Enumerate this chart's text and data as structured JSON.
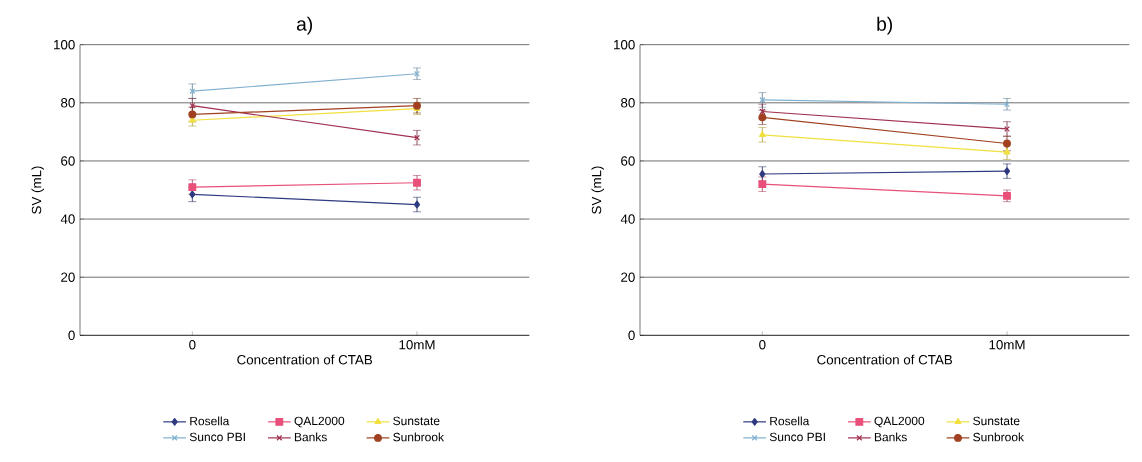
{
  "chart_data": [
    {
      "type": "line",
      "title": "a)",
      "xlabel": "Concentration of CTAB",
      "ylabel": "SV (mL)",
      "categories": [
        "0",
        "10mM"
      ],
      "ylim": [
        0,
        100
      ],
      "yticks": [
        0,
        20,
        40,
        60,
        80,
        100
      ],
      "grid": "y",
      "legend": "bottom",
      "series": [
        {
          "name": "Rosella",
          "color": "#2e3a80",
          "marker": "diamond",
          "values": [
            48.5,
            45
          ],
          "errors": [
            2.5,
            2.5
          ]
        },
        {
          "name": "QAL2000",
          "color": "#e8507a",
          "marker": "square",
          "values": [
            51,
            52.5
          ],
          "errors": [
            2.5,
            2.5
          ]
        },
        {
          "name": "Sunstate",
          "color": "#f0e040",
          "marker": "triangle",
          "values": [
            74,
            78
          ],
          "errors": [
            2,
            2
          ]
        },
        {
          "name": "Sunco PBI",
          "color": "#80b0d0",
          "marker": "cross",
          "values": [
            84,
            90
          ],
          "errors": [
            2.5,
            2
          ]
        },
        {
          "name": "Banks",
          "color": "#a03050",
          "marker": "cross",
          "values": [
            79,
            68
          ],
          "errors": [
            2.5,
            2.5
          ]
        },
        {
          "name": "Sunbrook",
          "color": "#a04020",
          "marker": "circle",
          "values": [
            76,
            79
          ],
          "errors": [
            2.5,
            2.5
          ]
        }
      ]
    },
    {
      "type": "line",
      "title": "b)",
      "xlabel": "Concentration of CTAB",
      "ylabel": "SV (mL)",
      "categories": [
        "0",
        "10mM"
      ],
      "ylim": [
        0,
        100
      ],
      "yticks": [
        0,
        20,
        40,
        60,
        80,
        100
      ],
      "grid": "y",
      "legend": "bottom",
      "series": [
        {
          "name": "Rosella",
          "color": "#2e3a80",
          "marker": "diamond",
          "values": [
            55.5,
            56.5
          ],
          "errors": [
            2.5,
            2.5
          ]
        },
        {
          "name": "QAL2000",
          "color": "#e8507a",
          "marker": "square",
          "values": [
            52,
            48
          ],
          "errors": [
            2.5,
            2
          ]
        },
        {
          "name": "Sunstate",
          "color": "#f0e040",
          "marker": "triangle",
          "values": [
            69,
            63
          ],
          "errors": [
            2.5,
            2.5
          ]
        },
        {
          "name": "Sunco PBI",
          "color": "#80b0d0",
          "marker": "cross",
          "values": [
            81,
            79.5
          ],
          "errors": [
            2.5,
            2
          ]
        },
        {
          "name": "Banks",
          "color": "#a03050",
          "marker": "cross",
          "values": [
            77,
            71
          ],
          "errors": [
            2.5,
            2.5
          ]
        },
        {
          "name": "Sunbrook",
          "color": "#a04020",
          "marker": "circle",
          "values": [
            75,
            66
          ],
          "errors": [
            2.5,
            2.5
          ]
        }
      ]
    }
  ]
}
